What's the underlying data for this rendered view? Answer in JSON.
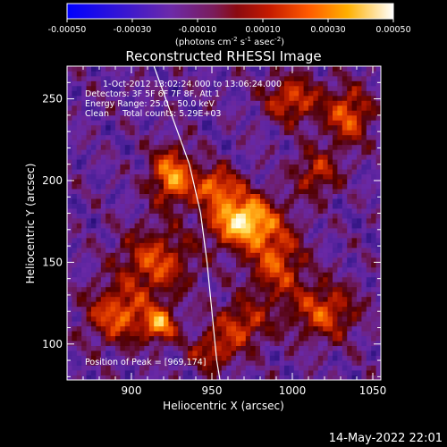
{
  "chart_data": {
    "type": "heatmap",
    "title": "Reconstructed RHESSI Image",
    "xlabel": "Heliocentric X (arcsec)",
    "ylabel": "Heliocentric Y (arcsec)",
    "xlim": [
      860,
      1055
    ],
    "ylim": [
      78,
      270
    ],
    "x_ticks": [
      "900",
      "950",
      "1000",
      "1050"
    ],
    "y_ticks": [
      "100",
      "150",
      "200",
      "250"
    ],
    "colorbar": {
      "range": [
        -0.0005,
        0.0005
      ],
      "ticks": [
        "-0.00050",
        "-0.00030",
        "-0.00010",
        "0.00010",
        "0.00030",
        "0.00050"
      ],
      "units_prefix": "(photons cm",
      "units_sup1": "-2",
      "units_mid1": " s",
      "units_sup2": "-1",
      "units_mid2": " asec",
      "units_sup3": "-2",
      "units_suffix": ")"
    },
    "info_lines": [
      "1-Oct-2012 13:02:24.000 to 13:06:24.000",
      "Detectors: 3F 5F 6F 7F 8F, Att 1",
      "Energy Range: 25.0 - 50.0 keV",
      "Clean     Total counts: 5.29E+03"
    ],
    "peak_label": "Position of Peak = [969,174]",
    "peak_position": [
      969,
      174
    ],
    "intensity_sources": [
      {
        "x": 969,
        "y": 176,
        "amp": 1.0,
        "sx": 14,
        "sy": 11
      },
      {
        "x": 952,
        "y": 197,
        "amp": 0.6,
        "sx": 10,
        "sy": 8
      },
      {
        "x": 925,
        "y": 203,
        "amp": 0.75,
        "sx": 9,
        "sy": 12
      },
      {
        "x": 915,
        "y": 150,
        "amp": 0.55,
        "sx": 16,
        "sy": 14
      },
      {
        "x": 892,
        "y": 118,
        "amp": 0.6,
        "sx": 14,
        "sy": 12
      },
      {
        "x": 918,
        "y": 112,
        "amp": 0.7,
        "sx": 7,
        "sy": 7
      },
      {
        "x": 990,
        "y": 150,
        "amp": 0.55,
        "sx": 12,
        "sy": 16
      },
      {
        "x": 1020,
        "y": 120,
        "amp": 0.55,
        "sx": 14,
        "sy": 12
      },
      {
        "x": 968,
        "y": 112,
        "amp": 0.5,
        "sx": 12,
        "sy": 10
      },
      {
        "x": 1000,
        "y": 250,
        "amp": 0.55,
        "sx": 12,
        "sy": 10
      },
      {
        "x": 1035,
        "y": 240,
        "amp": 0.6,
        "sx": 10,
        "sy": 12
      },
      {
        "x": 1015,
        "y": 205,
        "amp": 0.45,
        "sx": 10,
        "sy": 10
      },
      {
        "x": 950,
        "y": 95,
        "amp": 0.45,
        "sx": 10,
        "sy": 8
      }
    ],
    "limb_curve": [
      [
        914,
        270
      ],
      [
        925,
        240
      ],
      [
        936,
        210
      ],
      [
        943,
        180
      ],
      [
        947,
        150
      ],
      [
        950,
        120
      ],
      [
        953,
        90
      ],
      [
        955,
        78
      ]
    ]
  },
  "footer": {
    "date": "14-May-2022 22:01"
  }
}
